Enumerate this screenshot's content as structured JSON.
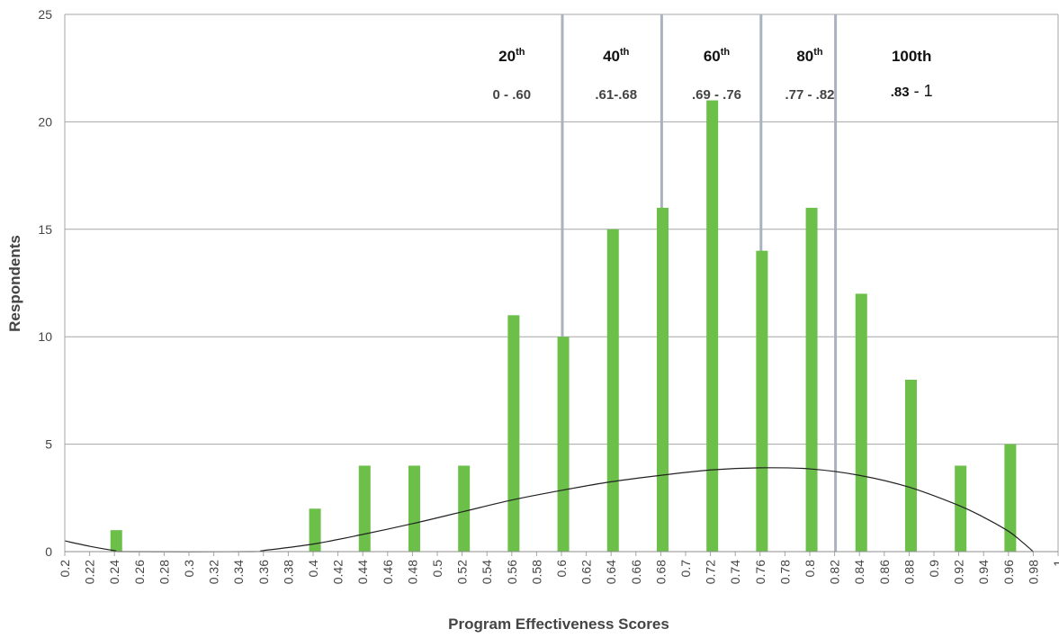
{
  "chart_data": {
    "type": "bar",
    "xlabel": "Program Effectiveness Scores",
    "ylabel": "Respondents",
    "ylim": [
      0,
      25
    ],
    "yticks": [
      "0",
      "5",
      "10",
      "15",
      "20",
      "25"
    ],
    "grid": true,
    "x_tick_labels": [
      "0.2",
      "0.22",
      "0.24",
      "0.26",
      "0.28",
      "0.3",
      "0.32",
      "0.34",
      "0.36",
      "0.38",
      "0.4",
      "0.42",
      "0.44",
      "0.46",
      "0.48",
      "0.5",
      "0.52",
      "0.54",
      "0.56",
      "0.58",
      "0.6",
      "0.62",
      "0.64",
      "0.66",
      "0.68",
      "0.7",
      "0.72",
      "0.74",
      "0.76",
      "0.78",
      "0.8",
      "0.82",
      "0.84",
      "0.86",
      "0.88",
      "0.9",
      "0.92",
      "0.94",
      "0.96",
      "0.98",
      "1"
    ],
    "bars": [
      {
        "x": 0.24,
        "value": 1
      },
      {
        "x": 0.4,
        "value": 2
      },
      {
        "x": 0.44,
        "value": 4
      },
      {
        "x": 0.48,
        "value": 4
      },
      {
        "x": 0.52,
        "value": 4
      },
      {
        "x": 0.56,
        "value": 11
      },
      {
        "x": 0.6,
        "value": 10
      },
      {
        "x": 0.64,
        "value": 15
      },
      {
        "x": 0.68,
        "value": 16
      },
      {
        "x": 0.72,
        "value": 21
      },
      {
        "x": 0.76,
        "value": 14
      },
      {
        "x": 0.8,
        "value": 16
      },
      {
        "x": 0.84,
        "value": 12
      },
      {
        "x": 0.88,
        "value": 8
      },
      {
        "x": 0.92,
        "value": 4
      },
      {
        "x": 0.96,
        "value": 5
      }
    ],
    "bar_color": "#6cc04a",
    "normal_curve": [
      {
        "x": 0.2,
        "y": 0.5
      },
      {
        "x": 0.22,
        "y": 0.25
      },
      {
        "x": 0.24,
        "y": 0.05
      },
      {
        "x": 0.25,
        "y": 0.0
      },
      {
        "x": 0.35,
        "y": 0.0
      },
      {
        "x": 0.36,
        "y": 0.05
      },
      {
        "x": 0.4,
        "y": 0.35
      },
      {
        "x": 0.44,
        "y": 0.8
      },
      {
        "x": 0.48,
        "y": 1.3
      },
      {
        "x": 0.52,
        "y": 1.85
      },
      {
        "x": 0.56,
        "y": 2.4
      },
      {
        "x": 0.6,
        "y": 2.85
      },
      {
        "x": 0.64,
        "y": 3.25
      },
      {
        "x": 0.68,
        "y": 3.55
      },
      {
        "x": 0.72,
        "y": 3.8
      },
      {
        "x": 0.76,
        "y": 3.9
      },
      {
        "x": 0.8,
        "y": 3.85
      },
      {
        "x": 0.84,
        "y": 3.55
      },
      {
        "x": 0.88,
        "y": 3.0
      },
      {
        "x": 0.92,
        "y": 2.15
      },
      {
        "x": 0.94,
        "y": 1.6
      },
      {
        "x": 0.96,
        "y": 0.95
      },
      {
        "x": 0.97,
        "y": 0.5
      },
      {
        "x": 0.98,
        "y": 0.0
      }
    ],
    "percentile_lines": [
      0.6,
      0.68,
      0.76,
      0.82
    ],
    "percentile_line_color": "#a9b3bf",
    "percentiles": [
      {
        "num": "20",
        "sup": "th",
        "range": "0 - .60",
        "x": 0.56
      },
      {
        "num": "40",
        "sup": "th",
        "range": ".61-.68",
        "x": 0.644
      },
      {
        "num": "60",
        "sup": "th",
        "range": ".69 - .76",
        "x": 0.725
      },
      {
        "num": "80",
        "sup": "th",
        "range": ".77 - .82",
        "x": 0.8
      },
      {
        "num": "100th",
        "sup": "",
        "range_bold": ".83",
        "range_rest": " - 1",
        "x": 0.882
      }
    ]
  }
}
